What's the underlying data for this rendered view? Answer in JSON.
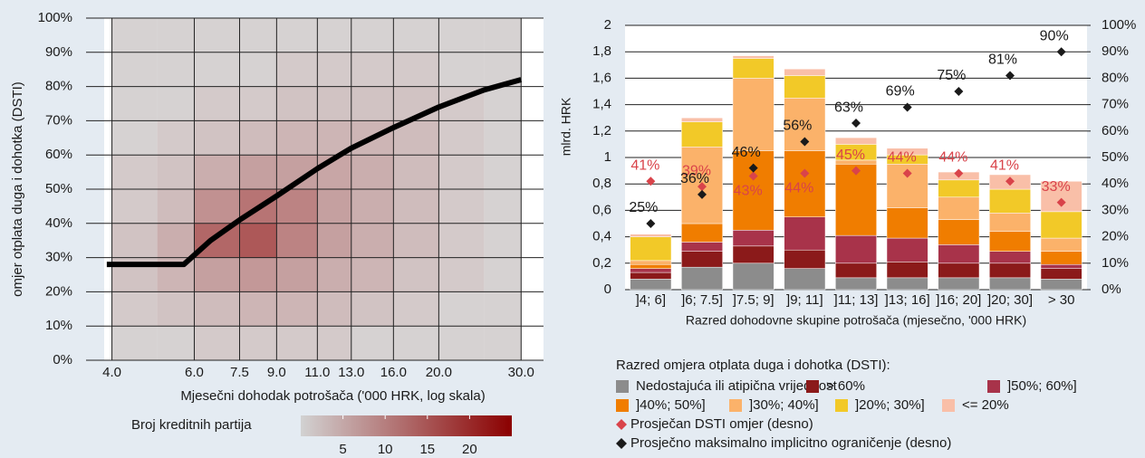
{
  "chart_data": [
    {
      "type": "heatmap",
      "ylabel": "omjer otplata duga i dohotka (DSTI)",
      "xlabel": "Mjesečni dohodak potrošača ('000 HRK, log skala)",
      "xscale": "log",
      "xlim": [
        3.85,
        33.5
      ],
      "xticks": [
        {
          "value": 4,
          "label": "4.0"
        },
        {
          "value": 6,
          "label": "6.0"
        },
        7.5,
        {
          "value": 9,
          "label": "9.0"
        },
        {
          "value": 11,
          "label": "11.0"
        },
        {
          "value": 13,
          "label": "13.0"
        },
        {
          "value": 16,
          "label": "16.0"
        },
        {
          "value": 20,
          "label": "20.0"
        },
        {
          "value": 30,
          "label": "30.0"
        }
      ],
      "ylim": [
        0,
        100
      ],
      "yticks": [
        {
          "value": 0,
          "label": "0%"
        },
        {
          "value": 10,
          "label": "10%"
        },
        {
          "value": 20,
          "label": "20%"
        },
        {
          "value": 30,
          "label": "30%"
        },
        {
          "value": 40,
          "label": "40%"
        },
        {
          "value": 50,
          "label": "50%"
        },
        {
          "value": 60,
          "label": "60%"
        },
        {
          "value": 70,
          "label": "70%"
        },
        {
          "value": 80,
          "label": "80%"
        },
        {
          "value": 90,
          "label": "90%"
        },
        {
          "value": 100,
          "label": "100%"
        }
      ],
      "grid": true,
      "density": {
        "x_bins": [
          4,
          5,
          6,
          7.5,
          9,
          11,
          13,
          16,
          20,
          25,
          30
        ],
        "y_bins": [
          0,
          10,
          20,
          30,
          40,
          50,
          60,
          70,
          80,
          90,
          100
        ],
        "counts": [
          [
            1,
            2,
            3,
            3,
            2,
            2,
            1,
            1,
            1,
            1
          ],
          [
            1,
            3,
            5,
            6,
            4,
            3,
            2,
            1,
            1,
            1
          ],
          [
            2,
            4,
            8,
            16,
            10,
            6,
            3,
            2,
            1,
            1
          ],
          [
            2,
            5,
            9,
            18,
            14,
            8,
            4,
            2,
            1,
            1
          ],
          [
            2,
            5,
            8,
            12,
            12,
            8,
            5,
            3,
            2,
            1
          ],
          [
            2,
            4,
            6,
            8,
            8,
            7,
            5,
            3,
            2,
            1
          ],
          [
            1,
            3,
            5,
            6,
            6,
            6,
            5,
            3,
            2,
            1
          ],
          [
            1,
            2,
            3,
            4,
            4,
            4,
            4,
            3,
            2,
            1
          ],
          [
            1,
            1,
            2,
            2,
            2,
            2,
            2,
            2,
            1,
            1
          ],
          [
            1,
            1,
            1,
            1,
            1,
            1,
            1,
            1,
            1,
            1
          ]
        ]
      },
      "line": {
        "color": "#000000",
        "x": [
          3.9,
          5.7,
          6.5,
          7.5,
          9,
          11,
          13,
          16,
          20,
          25,
          30
        ],
        "y": [
          28,
          28,
          35,
          41,
          48,
          56,
          62,
          68,
          74,
          79,
          82
        ]
      },
      "colorbar": {
        "label": "Broj kreditnih partija",
        "colors": [
          "#d2d2d2",
          "#8b0000"
        ],
        "lim": [
          0,
          25
        ],
        "ticks": [
          5,
          10,
          15,
          20
        ]
      }
    },
    {
      "type": "stacked_bar",
      "ylabel": "mlrd. HRK",
      "xlabel": "Razred dohodovne skupine potrošača (mjesečno, '000 HRK)",
      "categories": [
        "]4; 6]",
        "]6; 7.5]",
        "]7.5; 9]",
        "]9; 11]",
        "]11; 13]",
        "]13; 16]",
        "]16; 20]",
        "]20; 30]",
        "> 30"
      ],
      "ylim": [
        0,
        2
      ],
      "yticks": [
        0,
        {
          "value": 0.2,
          "label": "0,2"
        },
        {
          "value": 0.4,
          "label": "0,4"
        },
        {
          "value": 0.6,
          "label": "0,6"
        },
        {
          "value": 0.8,
          "label": "0,8"
        },
        1,
        {
          "value": 1.2,
          "label": "1,2"
        },
        {
          "value": 1.4,
          "label": "1,4"
        },
        {
          "value": 1.6,
          "label": "1,6"
        },
        {
          "value": 1.8,
          "label": "1,8"
        },
        2
      ],
      "y2lim": [
        0,
        100
      ],
      "y2ticks": [
        {
          "value": 0,
          "label": "0%"
        },
        {
          "value": 10,
          "label": "10%"
        },
        {
          "value": 20,
          "label": "20%"
        },
        {
          "value": 30,
          "label": "30%"
        },
        {
          "value": 40,
          "label": "40%"
        },
        {
          "value": 50,
          "label": "50%"
        },
        {
          "value": 60,
          "label": "60%"
        },
        {
          "value": 70,
          "label": "70%"
        },
        {
          "value": 80,
          "label": "80%"
        },
        {
          "value": 90,
          "label": "90%"
        },
        {
          "value": 100,
          "label": "100%"
        }
      ],
      "grid": true,
      "legend_title": "Razred omjera otplata duga i dohotka (DSTI):",
      "series": [
        {
          "name": "Nedostajuća ili atipična vrijednost",
          "color": "#8c8c8c",
          "values": [
            0.08,
            0.17,
            0.2,
            0.16,
            0.09,
            0.09,
            0.09,
            0.09,
            0.08
          ]
        },
        {
          "name": "> 60%",
          "color": "#8b1a1a",
          "values": [
            0.05,
            0.12,
            0.13,
            0.14,
            0.11,
            0.12,
            0.11,
            0.11,
            0.08
          ]
        },
        {
          "name": "]50%; 60%]",
          "color": "#a8334a",
          "values": [
            0.03,
            0.07,
            0.12,
            0.25,
            0.21,
            0.18,
            0.14,
            0.09,
            0.03
          ]
        },
        {
          "name": "]40%; 50%]",
          "color": "#f07d00",
          "values": [
            0.03,
            0.14,
            0.6,
            0.5,
            0.54,
            0.23,
            0.19,
            0.15,
            0.1
          ]
        },
        {
          "name": "]30%; 40%]",
          "color": "#fbb26a",
          "values": [
            0.03,
            0.58,
            0.55,
            0.4,
            0.03,
            0.33,
            0.17,
            0.14,
            0.1
          ]
        },
        {
          "name": "]20%; 30%]",
          "color": "#f2c928",
          "values": [
            0.18,
            0.19,
            0.15,
            0.17,
            0.12,
            0.07,
            0.13,
            0.18,
            0.2
          ]
        },
        {
          "name": "<= 20%",
          "color": "#f9bfa8",
          "values": [
            0.02,
            0.03,
            0.02,
            0.05,
            0.05,
            0.05,
            0.06,
            0.11,
            0.23
          ]
        },
        {
          "name": "Prosječan DSTI omjer (desno)",
          "type": "diamond",
          "axis": "y2",
          "color": "#d9434a",
          "values": [
            41,
            39,
            43,
            44,
            45,
            44,
            44,
            41,
            33
          ],
          "value_labels": [
            "41%",
            "39%",
            "43%",
            "44%",
            "45%",
            "44%",
            "44%",
            "41%",
            "33%"
          ]
        },
        {
          "name": "Prosječno maksimalno implicitno ograničenje (desno)",
          "type": "diamond",
          "axis": "y2",
          "color": "#1a1a1a",
          "values": [
            25,
            36,
            46,
            56,
            63,
            69,
            75,
            81,
            90
          ],
          "value_labels": [
            "25%",
            "36%",
            "46%",
            "56%",
            "63%",
            "69%",
            "75%",
            "81%",
            "90%"
          ]
        }
      ]
    }
  ]
}
